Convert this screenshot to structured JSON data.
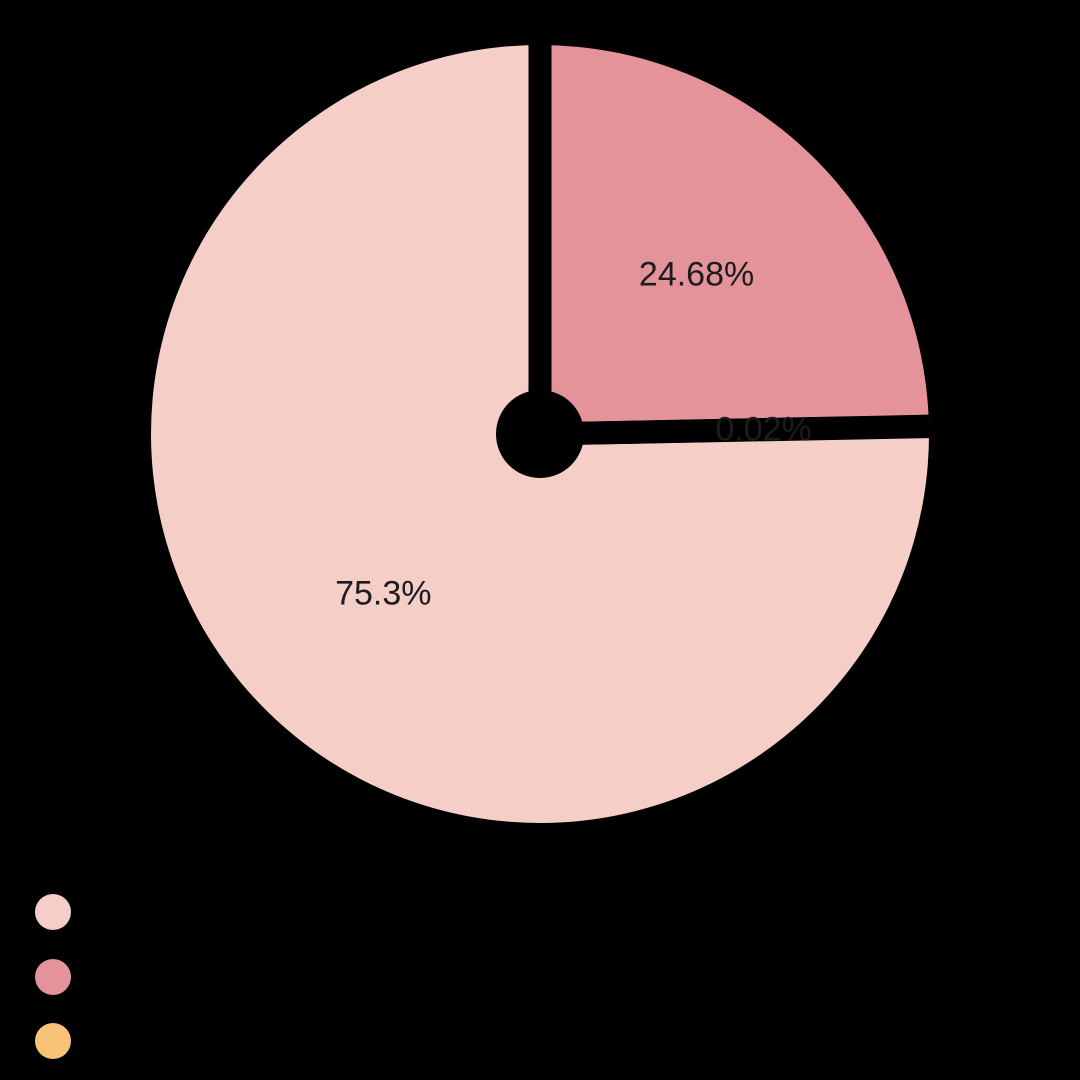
{
  "background_color": "#000000",
  "chart_data": {
    "type": "pie",
    "style": "donut-with-black-hole-and-separators",
    "start_at": "12-oclock",
    "direction": "clockwise",
    "total": 100,
    "slices": [
      {
        "name": "slice-dark-pink",
        "value": 24.68,
        "label_text": "24.68%",
        "color": "#E5939B"
      },
      {
        "name": "slice-orange",
        "value": 0.02,
        "label_text": "0.02%",
        "color": "#F9C377"
      },
      {
        "name": "slice-light-pink",
        "value": 75.3,
        "label_text": "75.3%",
        "color": "#F5CFC7"
      }
    ],
    "label_color": "#1C1C1E",
    "separator_color": "#000000",
    "hole_color": "#000000",
    "legend": {
      "position": "bottom-left",
      "labels_visible": false,
      "items": [
        {
          "name": "legend-light-pink",
          "color": "#F5CFC7"
        },
        {
          "name": "legend-dark-pink",
          "color": "#E5939B"
        },
        {
          "name": "legend-orange",
          "color": "#F9C377"
        }
      ]
    }
  }
}
